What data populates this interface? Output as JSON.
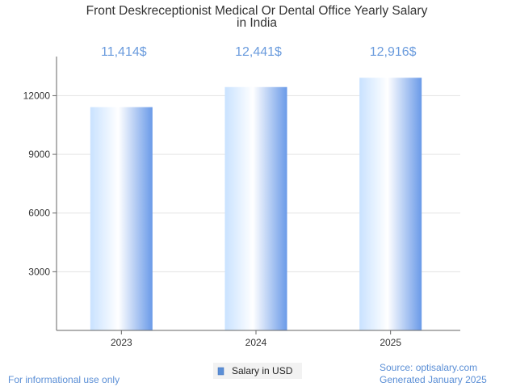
{
  "chart_data": {
    "type": "bar",
    "title_lines": [
      "Front Deskreceptionist Medical Or Dental Office Yearly Salary",
      "in India"
    ],
    "categories": [
      "2023",
      "2024",
      "2025"
    ],
    "series": [
      {
        "name": "Salary in USD",
        "values": [
          11414,
          12441,
          12916
        ]
      }
    ],
    "data_labels": [
      "11,414$",
      "12,441$",
      "12,916$"
    ],
    "y_ticks": [
      3000,
      6000,
      9000,
      12000
    ],
    "ylim": [
      0,
      14000
    ],
    "grid": true,
    "legend_position": "bottom-center",
    "xlabel": "",
    "ylabel": ""
  },
  "footer": {
    "left": "For informational use only",
    "source": "Source: optisalary.com",
    "generated": "Generated January 2025"
  },
  "colors": {
    "bar_light": "#dbeeff",
    "bar_mid": "#ffffff",
    "bar_dark": "#6a9ae8",
    "legend_swatch": "#5b8fd6",
    "grid": "#e3e3e3",
    "axis": "#666666"
  }
}
